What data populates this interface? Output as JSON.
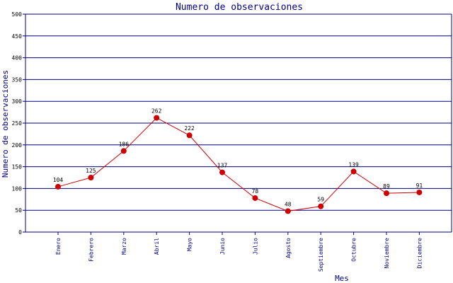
{
  "chart_data": {
    "type": "line",
    "title": "Numero de observaciones",
    "xlabel": "Mes",
    "ylabel": "Numero de observaciones",
    "ylim": [
      0,
      500
    ],
    "yticks": [
      0,
      50,
      100,
      150,
      200,
      250,
      300,
      350,
      400,
      450,
      500
    ],
    "grid": true,
    "categories": [
      "Enero",
      "Febrero",
      "Marzo",
      "Abril",
      "Mayo",
      "Junio",
      "Julio",
      "Agosto",
      "Septiembre",
      "Octubre",
      "Noviembre",
      "Diciembre"
    ],
    "series": [
      {
        "values": [
          104,
          125,
          186,
          262,
          222,
          137,
          78,
          48,
          59,
          139,
          89,
          91
        ],
        "color": "#cc0000"
      }
    ],
    "colors": {
      "grid": "#000080",
      "axis": "#000080",
      "line": "#cc0000",
      "marker": "#cc0000"
    }
  }
}
